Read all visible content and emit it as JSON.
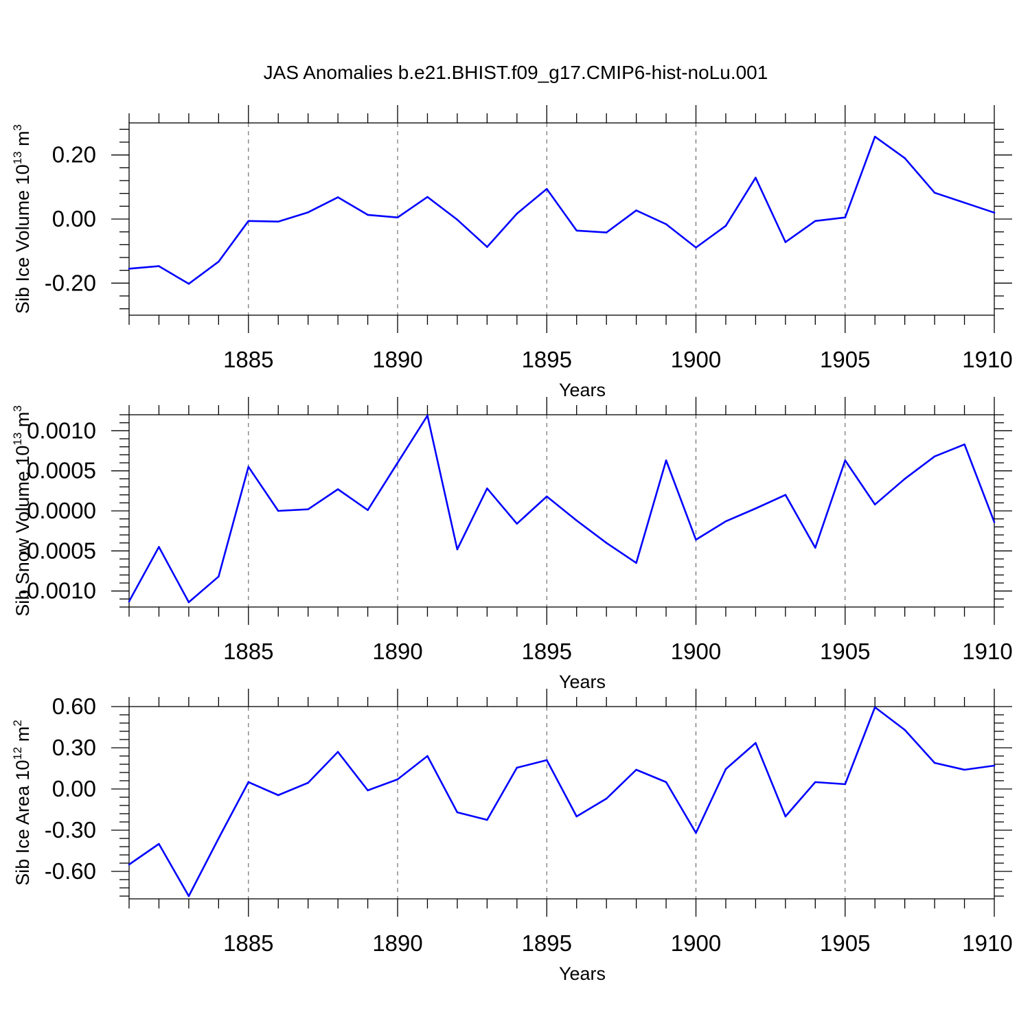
{
  "title": "JAS Anomalies b.e21.BHIST.f09_g17.CMIP6-hist-noLu.001",
  "series_color": "#0000ff",
  "chart_data": [
    {
      "type": "line",
      "ylabel": "Sib Ice Volume 10",
      "ylabel_exp": "13",
      "ylabel_unit": " m",
      "ylabel_unit_exp": "3",
      "xlabel": "Years",
      "xlim": [
        1881,
        1910
      ],
      "ylim": [
        -0.3,
        0.3
      ],
      "xticks": [
        1885,
        1890,
        1895,
        1900,
        1905,
        1910
      ],
      "xtick_labels": [
        "1885",
        "1890",
        "1895",
        "1900",
        "1905",
        "1910"
      ],
      "yticks": [
        -0.2,
        0.0,
        0.2
      ],
      "ytick_labels": [
        "-0.20",
        "0.00",
        "0.20"
      ],
      "x": [
        1881,
        1882,
        1883,
        1884,
        1885,
        1886,
        1887,
        1888,
        1889,
        1890,
        1891,
        1892,
        1893,
        1894,
        1895,
        1896,
        1897,
        1898,
        1899,
        1900,
        1901,
        1902,
        1903,
        1904,
        1905,
        1906,
        1907,
        1908,
        1909,
        1910
      ],
      "values": [
        -0.155,
        -0.147,
        -0.202,
        -0.133,
        -0.006,
        -0.008,
        0.021,
        0.068,
        0.013,
        0.005,
        0.069,
        -0.002,
        -0.087,
        0.017,
        0.094,
        -0.036,
        -0.042,
        0.027,
        -0.016,
        -0.089,
        -0.021,
        0.129,
        -0.072,
        -0.006,
        0.005,
        0.257,
        0.19,
        0.082,
        0.051,
        0.02
      ]
    },
    {
      "type": "line",
      "ylabel": "Sib Snow Volume 10",
      "ylabel_exp": "13",
      "ylabel_unit": " m",
      "ylabel_unit_exp": "3",
      "xlabel": "Years",
      "xlim": [
        1881,
        1910
      ],
      "ylim": [
        -0.0012,
        0.0012
      ],
      "xticks": [
        1885,
        1890,
        1895,
        1900,
        1905,
        1910
      ],
      "xtick_labels": [
        "1885",
        "1890",
        "1895",
        "1900",
        "1905",
        "1910"
      ],
      "yticks": [
        -0.001,
        -0.0005,
        0.0,
        0.0005,
        0.001
      ],
      "ytick_labels": [
        "-0.0010",
        "-0.0005",
        "0.0000",
        "0.0005",
        "0.0010"
      ],
      "x": [
        1881,
        1882,
        1883,
        1884,
        1885,
        1886,
        1887,
        1888,
        1889,
        1890,
        1891,
        1892,
        1893,
        1894,
        1895,
        1896,
        1897,
        1898,
        1899,
        1900,
        1901,
        1902,
        1903,
        1904,
        1905,
        1906,
        1907,
        1908,
        1909,
        1910
      ],
      "values": [
        -0.00113,
        -0.00045,
        -0.00114,
        -0.00082,
        0.00055,
        0.0,
        2e-05,
        0.00027,
        1e-05,
        0.0006,
        0.00119,
        -0.00048,
        0.00028,
        -0.00016,
        0.00018,
        -0.00012,
        -0.0004,
        -0.00065,
        0.00063,
        -0.00036,
        -0.00013,
        3e-05,
        0.0002,
        -0.00046,
        0.00063,
        8e-05,
        0.0004,
        0.00068,
        0.00083,
        -0.00014
      ]
    },
    {
      "type": "line",
      "ylabel": "Sib Ice Area 10",
      "ylabel_exp": "12",
      "ylabel_unit": " m",
      "ylabel_unit_exp": "2",
      "xlabel": "Years",
      "xlim": [
        1881,
        1910
      ],
      "ylim": [
        -0.8,
        0.6
      ],
      "xticks": [
        1885,
        1890,
        1895,
        1900,
        1905,
        1910
      ],
      "xtick_labels": [
        "1885",
        "1890",
        "1895",
        "1900",
        "1905",
        "1910"
      ],
      "yticks": [
        -0.6,
        -0.3,
        0.0,
        0.3,
        0.6
      ],
      "ytick_labels": [
        "-0.60",
        "-0.30",
        "0.00",
        "0.30",
        "0.60"
      ],
      "x": [
        1881,
        1882,
        1883,
        1884,
        1885,
        1886,
        1887,
        1888,
        1889,
        1890,
        1891,
        1892,
        1893,
        1894,
        1895,
        1896,
        1897,
        1898,
        1899,
        1900,
        1901,
        1902,
        1903,
        1904,
        1905,
        1906,
        1907,
        1908,
        1909,
        1910
      ],
      "values": [
        -0.55,
        -0.4,
        -0.78,
        -0.36,
        0.05,
        -0.045,
        0.045,
        0.27,
        -0.01,
        0.07,
        0.24,
        -0.17,
        -0.225,
        0.155,
        0.21,
        -0.2,
        -0.07,
        0.14,
        0.05,
        -0.32,
        0.145,
        0.335,
        -0.2,
        0.05,
        0.035,
        0.595,
        0.43,
        0.19,
        0.14,
        0.17
      ]
    }
  ]
}
